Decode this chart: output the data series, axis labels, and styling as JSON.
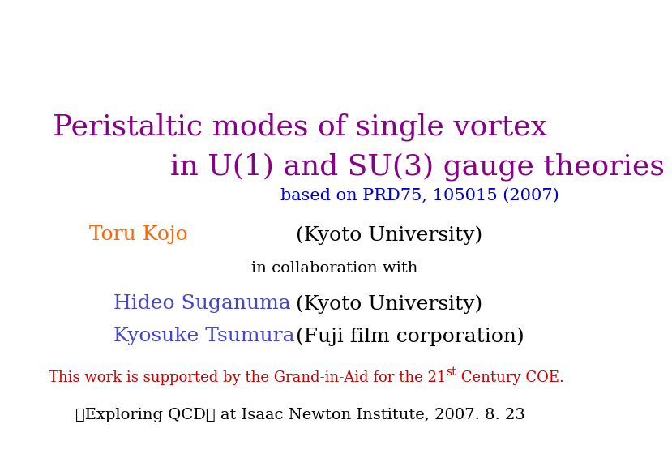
{
  "title_line1": "Peristaltic modes of single vortex",
  "title_line2": "in U(1) and SU(3) gauge theories",
  "title_color": "#880088",
  "subtitle": "based on PRD75, 105015 (2007)",
  "subtitle_color": "#0000CC",
  "author1_name": "Toru Kojo",
  "author1_color": "#FF6600",
  "author1_affil": "(Kyoto University)",
  "collab_text": "in collaboration with",
  "author2_name": "Hideo Suganuma",
  "author2_color": "#4444CC",
  "author2_affil": "(Kyoto University)",
  "author3_name": "Kyosuke Tsumura",
  "author3_color": "#4444CC",
  "author3_affil": "(Fuji film corporation)",
  "support_pre": "This work is supported by the Grand-in-Aid for the 21",
  "support_sup": "st",
  "support_post": " Century COE.",
  "support_color": "#CC0000",
  "footer_text": "「Exploring QCD」 at Isaac Newton Institute, 2007. 8. 23",
  "footer_color": "#000000",
  "background_color": "#FFFFFF",
  "title_fontsize": 26,
  "subtitle_fontsize": 15,
  "author_fontsize": 18,
  "collab_fontsize": 14,
  "support_fontsize": 13,
  "footer_fontsize": 14
}
